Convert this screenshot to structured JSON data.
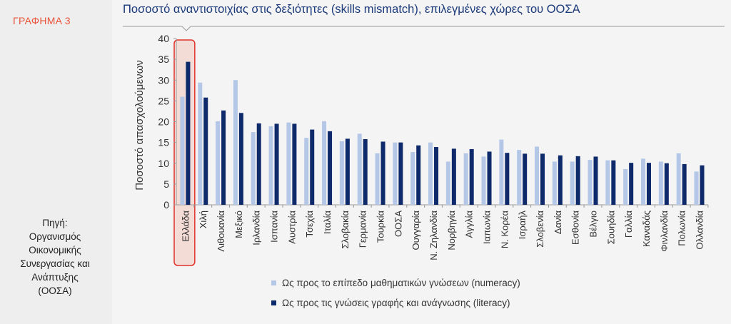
{
  "figure_label": "ΓΡΑΦΗΜΑ 3",
  "source": {
    "line1": "Πηγή:",
    "line2": "Οργανισμός",
    "line3": "Οικονομικής",
    "line4": "Συνεργασίας και",
    "line5": "Ανάπτυξης",
    "line6": "(ΟΟΣΑ)"
  },
  "colors": {
    "numeracy": "#b4c7e7",
    "literacy": "#0f2a6b",
    "highlight_border": "#e0322b",
    "highlight_fill": "#f3dcd6",
    "title": "#1b3a7a"
  },
  "chart_data": {
    "type": "bar",
    "title": "Ποσοστό αναντιστοιχίας στις δεξιότητες (skills mismatch), επιλεγμένες χώρες του ΟΟΣΑ",
    "ylabel": "Ποσοστό απασχολούμενων",
    "xlabel": "",
    "ylim": [
      0,
      40
    ],
    "yticks": [
      0,
      5,
      10,
      15,
      20,
      25,
      30,
      35,
      40
    ],
    "grid": false,
    "legend_position": "bottom",
    "highlighted_category": "Ελλάδα",
    "categories": [
      "Ελλάδα",
      "Χιλή",
      "Λιθουανία",
      "Μεξικό",
      "Ιρλανδία",
      "Ισπανία",
      "Αυστρία",
      "Τσεχία",
      "Ιταλία",
      "Σλοβακία",
      "Γερμανία",
      "Τουρκία",
      "ΟΟΣΑ",
      "Ουγγαρία",
      "Ν. Ζηλανδία",
      "Νορβηγία",
      "Αγγλία",
      "Ιαπωνία",
      "Ν. Κορέα",
      "Ισραήλ",
      "Σλοβενία",
      "Δανία",
      "Εσθονία",
      "Βέλγιο",
      "Σουηδία",
      "Γαλλία",
      "Καναδάς",
      "Φινλανδία",
      "Πολωνία",
      "Ολλανδία"
    ],
    "series": [
      {
        "name": "Ως προς το επίπεδο μαθηματικών γνώσεων (numeracy)",
        "values": [
          26,
          29.4,
          20.1,
          30,
          17.5,
          18.9,
          19.8,
          16.1,
          20.1,
          15.3,
          17.1,
          12.4,
          15,
          12.7,
          15,
          10.4,
          12.4,
          11.6,
          15.7,
          13.2,
          14,
          10.4,
          10.4,
          10.8,
          10.7,
          8.6,
          11.1,
          10.4,
          12.4,
          8
        ]
      },
      {
        "name": "Ως προς τις γνώσεις γραφής και ανάγνωσης (literacy)",
        "values": [
          34.4,
          25.8,
          22.7,
          22.1,
          19.6,
          19.5,
          19.5,
          18.1,
          17.7,
          15.9,
          15.8,
          15.2,
          15,
          14.3,
          13.9,
          13.5,
          13.4,
          12.8,
          12.5,
          12.3,
          12.3,
          11.9,
          11.7,
          11.6,
          10.7,
          10.1,
          10.1,
          10,
          9.8,
          9.5
        ]
      }
    ]
  }
}
